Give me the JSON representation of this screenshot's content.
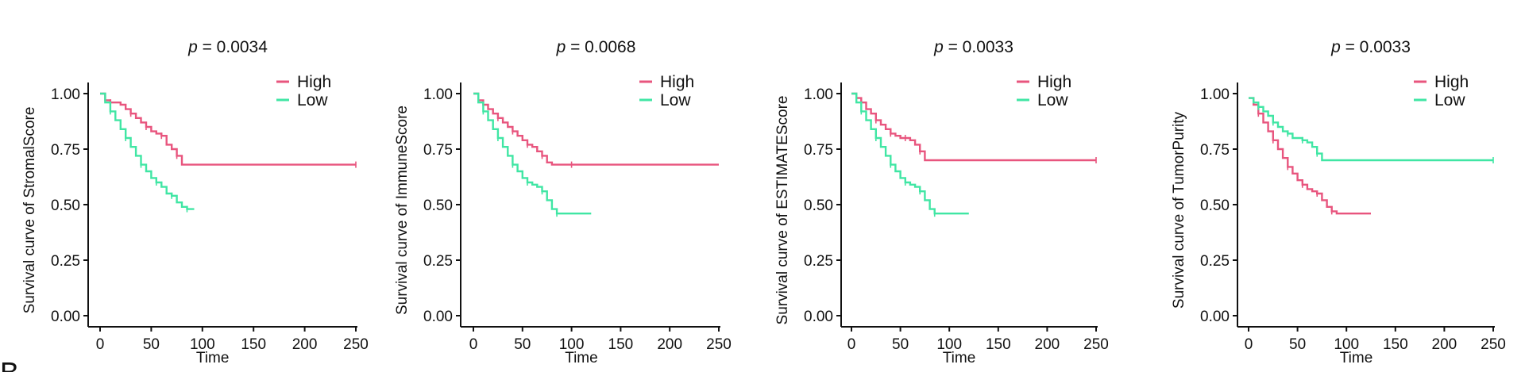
{
  "panel_letter": "B",
  "chart_data": [
    {
      "type": "line",
      "p_label": "p",
      "p_value": "= 0.0034",
      "xlabel": "Time",
      "ylabel": "Survival curve of StromalScore",
      "xlim": [
        0,
        250
      ],
      "ylim": [
        0,
        1
      ],
      "x_ticks": [
        "0",
        "50",
        "100",
        "150",
        "200",
        "250"
      ],
      "y_ticks": [
        "0.00",
        "0.25",
        "0.50",
        "0.75",
        "1.00"
      ],
      "legend_position": "top-right",
      "series": [
        {
          "name": "High",
          "color": "#e8557e",
          "x": [
            0,
            5,
            10,
            20,
            25,
            30,
            35,
            40,
            45,
            50,
            55,
            60,
            65,
            70,
            75,
            80,
            100,
            250
          ],
          "y": [
            1.0,
            0.97,
            0.96,
            0.95,
            0.93,
            0.91,
            0.89,
            0.87,
            0.85,
            0.83,
            0.82,
            0.81,
            0.77,
            0.75,
            0.72,
            0.68,
            0.68,
            0.68
          ]
        },
        {
          "name": "Low",
          "color": "#40e6a4",
          "x": [
            0,
            5,
            10,
            15,
            20,
            25,
            30,
            35,
            40,
            45,
            50,
            55,
            60,
            65,
            70,
            75,
            80,
            85,
            90,
            92
          ],
          "y": [
            1.0,
            0.96,
            0.92,
            0.88,
            0.84,
            0.8,
            0.76,
            0.72,
            0.68,
            0.65,
            0.62,
            0.6,
            0.58,
            0.55,
            0.54,
            0.51,
            0.49,
            0.48,
            0.48,
            0.48
          ]
        }
      ]
    },
    {
      "type": "line",
      "p_label": "p",
      "p_value": "= 0.0068",
      "xlabel": "Time",
      "ylabel": "Survival curve of ImmuneScore",
      "xlim": [
        0,
        250
      ],
      "ylim": [
        0,
        1
      ],
      "x_ticks": [
        "0",
        "50",
        "100",
        "150",
        "200",
        "250"
      ],
      "y_ticks": [
        "0.00",
        "0.25",
        "0.50",
        "0.75",
        "1.00"
      ],
      "legend_position": "top-right",
      "series": [
        {
          "name": "High",
          "color": "#e8557e",
          "x": [
            0,
            5,
            10,
            15,
            20,
            25,
            30,
            35,
            40,
            45,
            50,
            55,
            60,
            65,
            70,
            75,
            80,
            100,
            250
          ],
          "y": [
            1.0,
            0.97,
            0.95,
            0.93,
            0.91,
            0.89,
            0.87,
            0.85,
            0.83,
            0.81,
            0.79,
            0.77,
            0.76,
            0.74,
            0.72,
            0.69,
            0.68,
            0.68,
            0.68
          ]
        },
        {
          "name": "Low",
          "color": "#40e6a4",
          "x": [
            0,
            5,
            10,
            15,
            20,
            25,
            30,
            35,
            40,
            45,
            50,
            55,
            60,
            65,
            70,
            75,
            80,
            85,
            100,
            120
          ],
          "y": [
            1.0,
            0.96,
            0.92,
            0.88,
            0.84,
            0.8,
            0.76,
            0.72,
            0.68,
            0.65,
            0.62,
            0.6,
            0.59,
            0.58,
            0.56,
            0.52,
            0.48,
            0.46,
            0.46,
            0.46
          ]
        }
      ]
    },
    {
      "type": "line",
      "p_label": "p",
      "p_value": "= 0.0033",
      "xlabel": "Time",
      "ylabel": "Survival curve of ESTIMATEScore",
      "xlim": [
        0,
        250
      ],
      "ylim": [
        0,
        1
      ],
      "x_ticks": [
        "0",
        "50",
        "100",
        "150",
        "200",
        "250"
      ],
      "y_ticks": [
        "0.00",
        "0.25",
        "0.50",
        "0.75",
        "1.00"
      ],
      "legend_position": "top-right",
      "series": [
        {
          "name": "High",
          "color": "#e8557e",
          "x": [
            0,
            5,
            10,
            15,
            20,
            25,
            30,
            35,
            40,
            45,
            50,
            55,
            60,
            65,
            70,
            75,
            100,
            250
          ],
          "y": [
            1.0,
            0.98,
            0.96,
            0.93,
            0.91,
            0.88,
            0.86,
            0.84,
            0.82,
            0.81,
            0.8,
            0.8,
            0.79,
            0.77,
            0.74,
            0.7,
            0.7,
            0.7
          ]
        },
        {
          "name": "Low",
          "color": "#40e6a4",
          "x": [
            0,
            5,
            10,
            15,
            20,
            25,
            30,
            35,
            40,
            45,
            50,
            55,
            60,
            65,
            70,
            75,
            80,
            85,
            100,
            120
          ],
          "y": [
            1.0,
            0.96,
            0.92,
            0.88,
            0.84,
            0.8,
            0.76,
            0.72,
            0.68,
            0.65,
            0.62,
            0.6,
            0.59,
            0.58,
            0.56,
            0.52,
            0.48,
            0.46,
            0.46,
            0.46
          ]
        }
      ]
    },
    {
      "type": "line",
      "p_label": "p",
      "p_value": "= 0.0033",
      "xlabel": "Time",
      "ylabel": "Survival curve of TumorPurity",
      "xlim": [
        0,
        250
      ],
      "ylim": [
        0,
        1
      ],
      "x_ticks": [
        "0",
        "50",
        "100",
        "150",
        "200",
        "250"
      ],
      "y_ticks": [
        "0.00",
        "0.25",
        "0.50",
        "0.75",
        "1.00"
      ],
      "legend_position": "top-right",
      "series": [
        {
          "name": "High",
          "color": "#e8557e",
          "x": [
            0,
            5,
            10,
            15,
            20,
            25,
            30,
            35,
            40,
            45,
            50,
            55,
            60,
            65,
            70,
            75,
            80,
            85,
            90,
            125
          ],
          "y": [
            0.98,
            0.95,
            0.91,
            0.87,
            0.83,
            0.79,
            0.75,
            0.71,
            0.67,
            0.64,
            0.61,
            0.59,
            0.57,
            0.56,
            0.55,
            0.52,
            0.49,
            0.47,
            0.46,
            0.46
          ]
        },
        {
          "name": "Low",
          "color": "#40e6a4",
          "x": [
            0,
            5,
            10,
            15,
            20,
            25,
            30,
            35,
            40,
            45,
            50,
            55,
            60,
            65,
            70,
            75,
            100,
            250
          ],
          "y": [
            0.98,
            0.96,
            0.94,
            0.92,
            0.9,
            0.87,
            0.85,
            0.83,
            0.82,
            0.8,
            0.8,
            0.79,
            0.78,
            0.76,
            0.73,
            0.7,
            0.7,
            0.7
          ]
        }
      ]
    }
  ]
}
